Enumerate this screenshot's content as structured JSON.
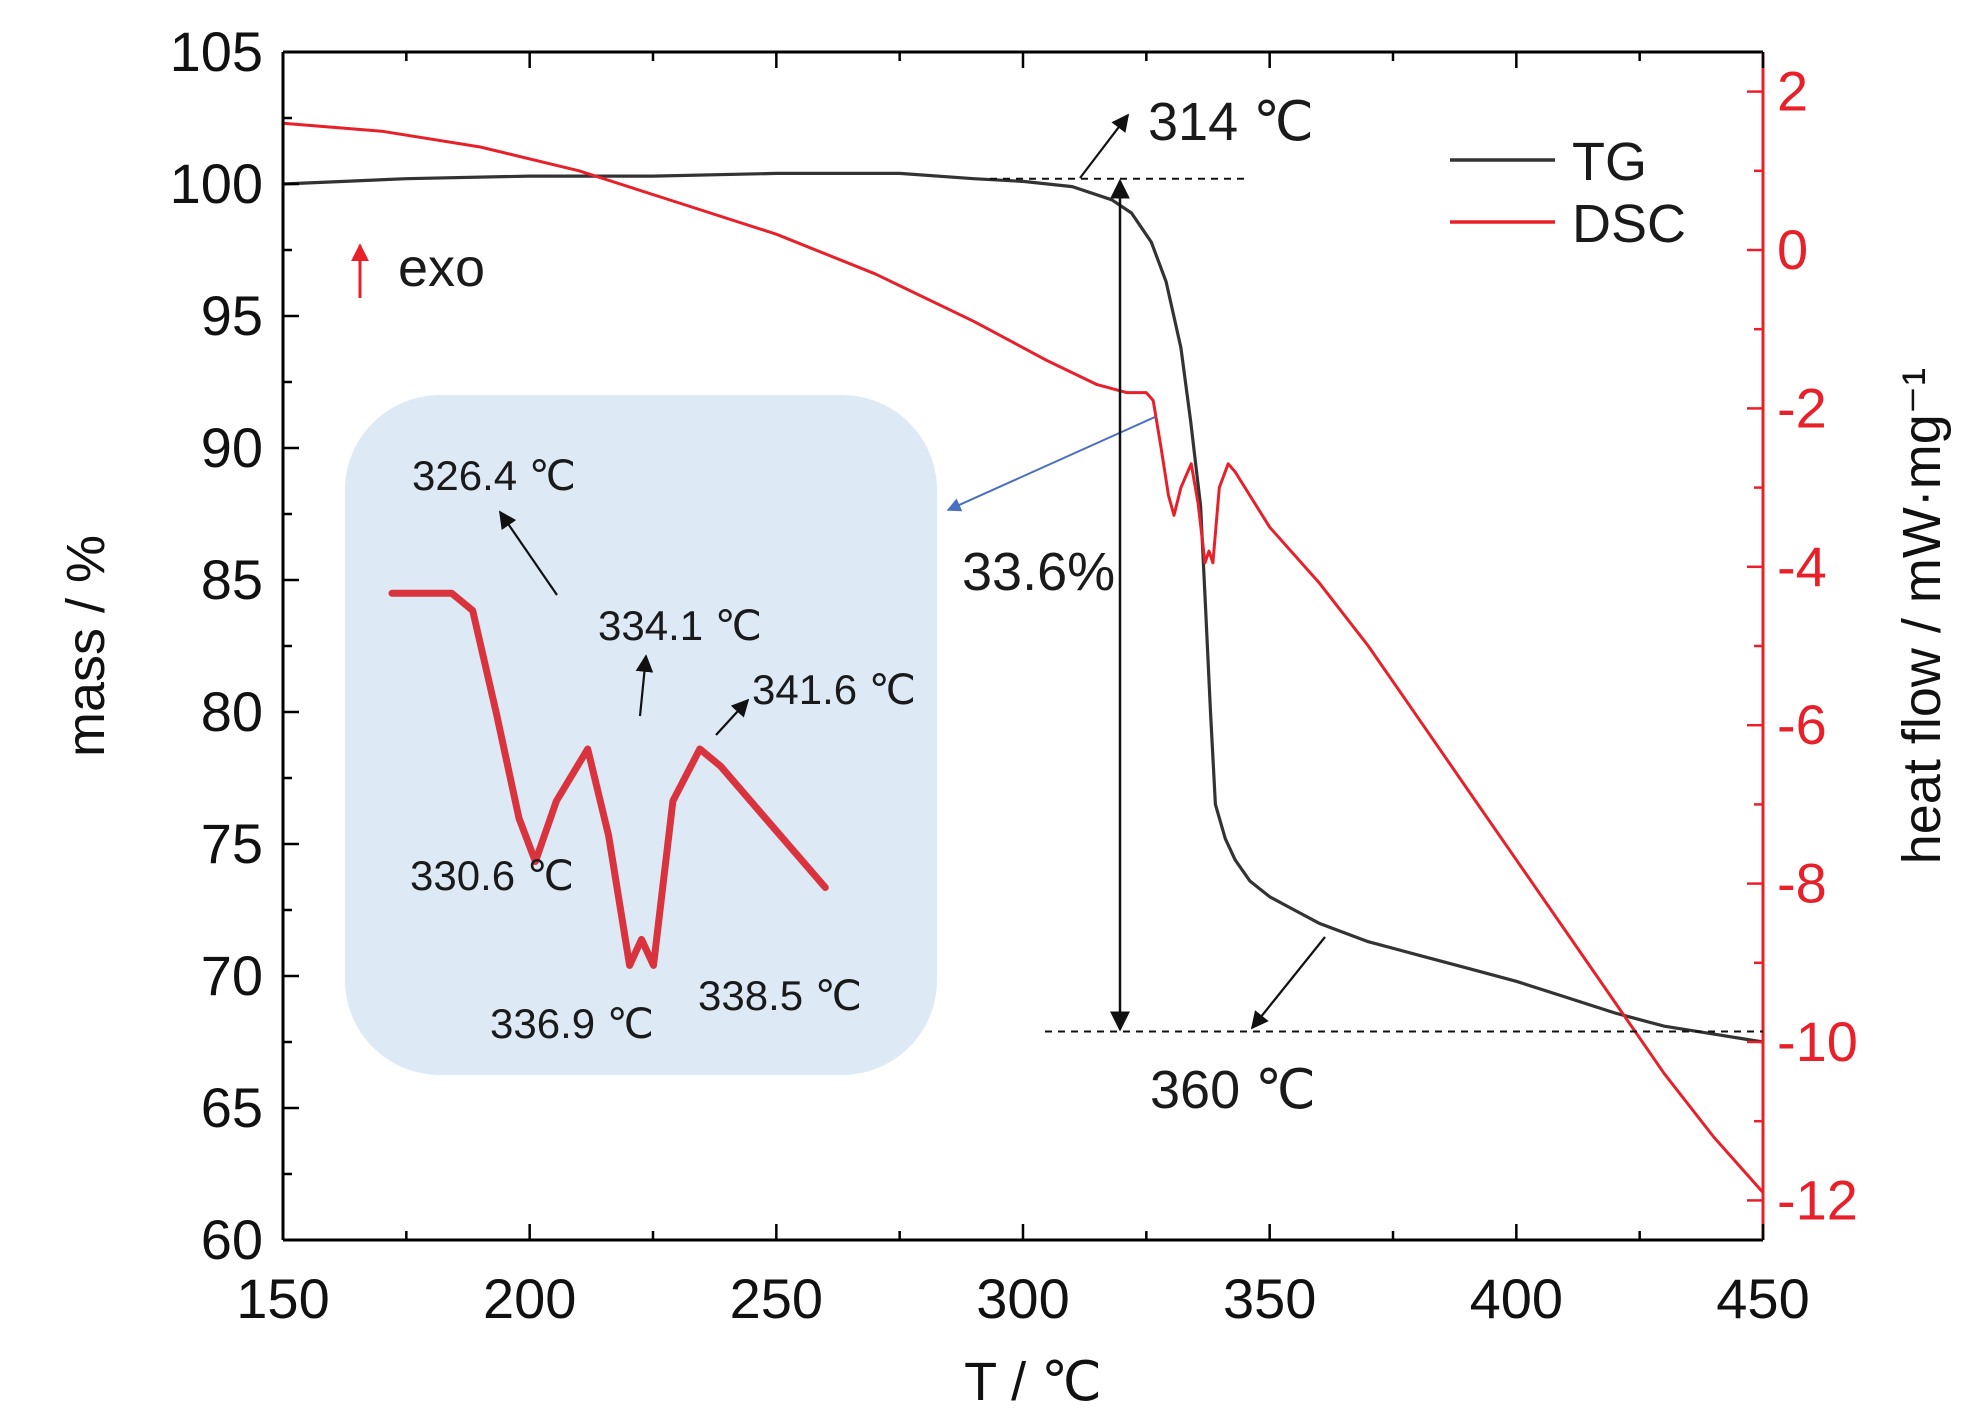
{
  "chart_data": {
    "type": "line",
    "x": {
      "label": "T / ℃",
      "range": [
        150,
        450
      ],
      "ticks": [
        150,
        200,
        250,
        300,
        350,
        400,
        450
      ]
    },
    "y_left": {
      "label": "mass / %",
      "range": [
        60,
        105
      ],
      "ticks": [
        60,
        65,
        70,
        75,
        80,
        85,
        90,
        95,
        100,
        105
      ]
    },
    "y_right": {
      "label": "heat flow / mW·mg⁻¹",
      "range": [
        -12.5,
        2.5
      ],
      "ticks": [
        -12,
        -10,
        -8,
        -6,
        -4,
        -2,
        0,
        2
      ],
      "color": "#e8202a"
    },
    "series": [
      {
        "name": "TG",
        "axis": "left",
        "color": "#333333",
        "points": [
          [
            150,
            100.0
          ],
          [
            175,
            100.2
          ],
          [
            200,
            100.3
          ],
          [
            225,
            100.3
          ],
          [
            250,
            100.4
          ],
          [
            275,
            100.4
          ],
          [
            290,
            100.2
          ],
          [
            300,
            100.1
          ],
          [
            310,
            99.9
          ],
          [
            318,
            99.4
          ],
          [
            322,
            98.9
          ],
          [
            326,
            97.8
          ],
          [
            329,
            96.3
          ],
          [
            332,
            93.8
          ],
          [
            334,
            91.0
          ],
          [
            336,
            87.8
          ],
          [
            337,
            84.0
          ],
          [
            338,
            80.0
          ],
          [
            339,
            76.5
          ],
          [
            341,
            75.2
          ],
          [
            343,
            74.4
          ],
          [
            346,
            73.6
          ],
          [
            350,
            73.0
          ],
          [
            355,
            72.5
          ],
          [
            360,
            72.0
          ],
          [
            370,
            71.3
          ],
          [
            380,
            70.8
          ],
          [
            390,
            70.3
          ],
          [
            400,
            69.8
          ],
          [
            410,
            69.2
          ],
          [
            420,
            68.6
          ],
          [
            430,
            68.1
          ],
          [
            440,
            67.8
          ],
          [
            450,
            67.5
          ]
        ]
      },
      {
        "name": "DSC",
        "axis": "right",
        "color": "#e8202a",
        "points": [
          [
            150,
            1.6
          ],
          [
            170,
            1.5
          ],
          [
            190,
            1.3
          ],
          [
            210,
            1.0
          ],
          [
            230,
            0.6
          ],
          [
            250,
            0.2
          ],
          [
            270,
            -0.3
          ],
          [
            290,
            -0.9
          ],
          [
            305,
            -1.4
          ],
          [
            315,
            -1.7
          ],
          [
            321,
            -1.8
          ],
          [
            325,
            -1.8
          ],
          [
            326.4,
            -1.9
          ],
          [
            328,
            -2.5
          ],
          [
            329.5,
            -3.1
          ],
          [
            330.6,
            -3.35
          ],
          [
            332,
            -3.0
          ],
          [
            334.1,
            -2.7
          ],
          [
            335.5,
            -3.2
          ],
          [
            336.9,
            -3.95
          ],
          [
            337.7,
            -3.8
          ],
          [
            338.5,
            -3.95
          ],
          [
            339.8,
            -3.0
          ],
          [
            341.6,
            -2.7
          ],
          [
            343,
            -2.8
          ],
          [
            346,
            -3.1
          ],
          [
            350,
            -3.5
          ],
          [
            360,
            -4.2
          ],
          [
            370,
            -5.0
          ],
          [
            380,
            -5.9
          ],
          [
            390,
            -6.8
          ],
          [
            400,
            -7.7
          ],
          [
            410,
            -8.6
          ],
          [
            420,
            -9.5
          ],
          [
            430,
            -10.4
          ],
          [
            440,
            -11.2
          ],
          [
            450,
            -11.9
          ]
        ]
      }
    ],
    "legend": {
      "position": "top-right",
      "entries": [
        "TG",
        "DSC"
      ]
    },
    "annotations": {
      "onset": "314 ℃",
      "end": "360 ℃",
      "mass_loss": "33.6%",
      "exo": "exo"
    },
    "inset": {
      "labels": [
        "326.4 ℃",
        "334.1 ℃",
        "341.6 ℃",
        "330.6 ℃",
        "336.9 ℃",
        "338.5 ℃"
      ]
    }
  }
}
